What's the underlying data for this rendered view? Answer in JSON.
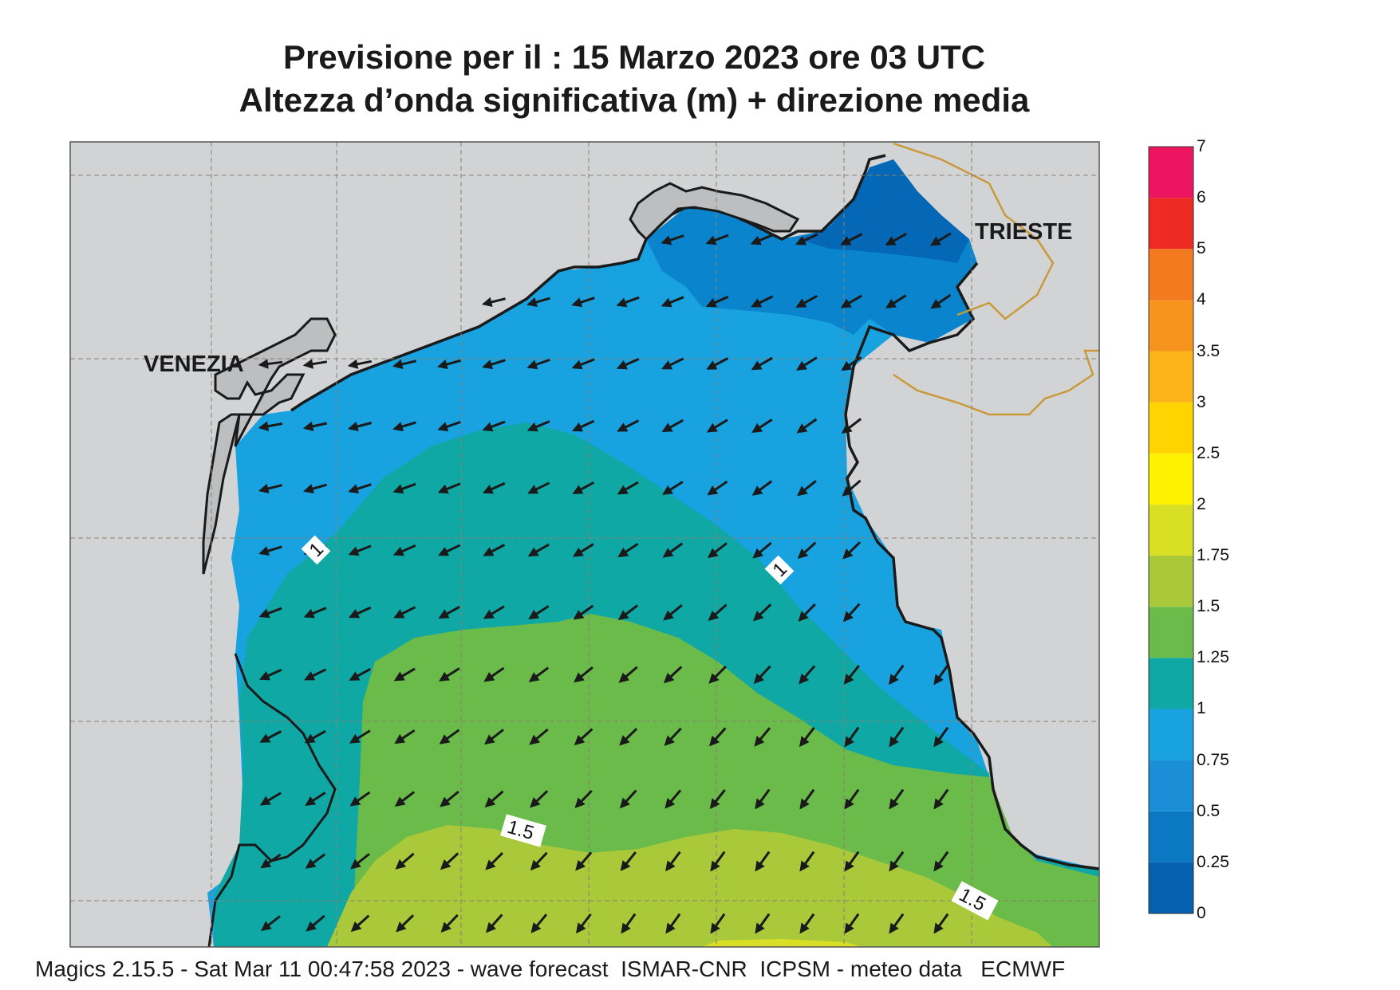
{
  "header": {
    "title_line1": "Previsione per il  :  15   Marzo   2023   ore 03 UTC",
    "title_line2": "Altezza d’onda significativa (m) + direzione media"
  },
  "map": {
    "cities": {
      "venezia": "VENEZIA",
      "trieste": "TRIESTE"
    },
    "contour_labels": [
      "1",
      "1",
      "1.5",
      "1.5"
    ],
    "colors": {
      "land": "#d2d3d5",
      "land_lagoon": "#bdbec0",
      "coast": "#1a1a1a",
      "border": "#c99a3a",
      "grid": "#8a7f70"
    }
  },
  "legend": {
    "levels": [
      "0",
      "0.25",
      "0.5",
      "0.75",
      "1",
      "1.25",
      "1.5",
      "1.75",
      "2",
      "2.5",
      "3",
      "3.5",
      "4",
      "5",
      "6",
      "7"
    ],
    "colors": [
      "#0560b0",
      "#0a78c2",
      "#1a8fd8",
      "#19a2e0",
      "#10a8a5",
      "#6bbb4a",
      "#a9c93a",
      "#d8df24",
      "#fff200",
      "#ffd400",
      "#fbb31a",
      "#f7941d",
      "#f47a20",
      "#ee2a24",
      "#ed1460"
    ]
  },
  "footer": {
    "text": "Magics 2.15.5 - Sat Mar 11 00:47:58 2023 - wave forecast  ISMAR-CNR  ICPSM - meteo data   ECMWF"
  }
}
